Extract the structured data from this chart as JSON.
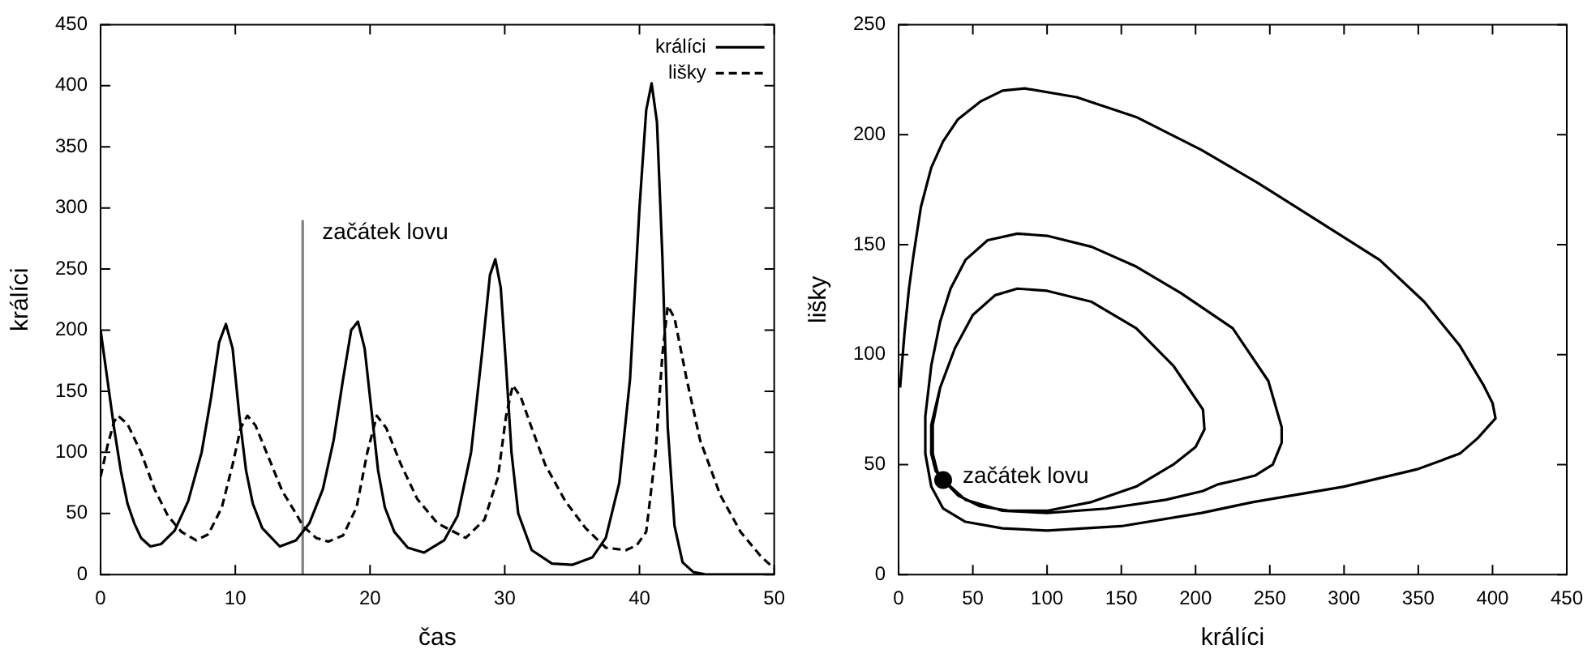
{
  "chart_data": [
    {
      "type": "line",
      "xlabel": "čas",
      "ylabel": "králíci",
      "xlim": [
        0,
        50
      ],
      "xticks": [
        0,
        10,
        20,
        30,
        40,
        50
      ],
      "ylim": [
        0,
        450
      ],
      "yticks": [
        0,
        50,
        100,
        150,
        200,
        250,
        300,
        350,
        400,
        450
      ],
      "grid": false,
      "legend": "top right",
      "marker": "none",
      "series": [
        {
          "name": "králíci",
          "color": "#000000",
          "line_style": "solid",
          "x": [
            0,
            0.5,
            1,
            1.5,
            2,
            2.5,
            3,
            3.7,
            4.5,
            5.5,
            6.5,
            7.5,
            8.2,
            8.8,
            9.3,
            9.8,
            10.3,
            10.8,
            11.3,
            12,
            13.3,
            14.5,
            15,
            15.5,
            16.5,
            17.3,
            18,
            18.6,
            19.1,
            19.6,
            20.1,
            20.6,
            21.1,
            21.8,
            22.8,
            24,
            25.5,
            26.5,
            27.5,
            28.3,
            28.9,
            29.3,
            29.7,
            30.1,
            30.5,
            31,
            32,
            33.5,
            35,
            36.5,
            37.5,
            38.5,
            39.3,
            40,
            40.5,
            40.9,
            41.3,
            41.7,
            42.1,
            42.6,
            43.2,
            44,
            45,
            50
          ],
          "values": [
            200,
            160,
            120,
            85,
            58,
            42,
            30,
            23,
            25,
            36,
            60,
            100,
            145,
            190,
            205,
            185,
            130,
            85,
            58,
            38,
            23,
            28,
            35,
            42,
            70,
            110,
            160,
            200,
            207,
            185,
            135,
            85,
            55,
            35,
            22,
            18,
            28,
            48,
            100,
            180,
            245,
            258,
            235,
            170,
            100,
            50,
            20,
            9,
            8,
            14,
            30,
            75,
            160,
            300,
            380,
            402,
            370,
            260,
            120,
            40,
            10,
            2,
            0,
            0
          ]
        },
        {
          "name": "lišky",
          "color": "#000000",
          "line_style": "dashed",
          "x": [
            0,
            0.5,
            1,
            1.3,
            2,
            3,
            4,
            5,
            6,
            7.1,
            8,
            9,
            9.8,
            10.4,
            10.9,
            11.5,
            12.5,
            13.5,
            14.5,
            15,
            16,
            16.9,
            18,
            19,
            19.8,
            20.5,
            21.2,
            22.3,
            23.5,
            25,
            27.1,
            28.5,
            29.5,
            30.1,
            30.6,
            31.2,
            32,
            33,
            34.5,
            36,
            37.5,
            39,
            39.8,
            40.5,
            41.2,
            41.7,
            42.1,
            42.6,
            43.5,
            44.5,
            46,
            47.5,
            49,
            50
          ],
          "values": [
            80,
            105,
            125,
            130,
            123,
            100,
            70,
            48,
            35,
            28,
            33,
            55,
            90,
            120,
            130,
            122,
            95,
            68,
            50,
            40,
            30,
            27,
            32,
            55,
            100,
            130,
            120,
            90,
            62,
            42,
            30,
            45,
            80,
            130,
            155,
            145,
            120,
            90,
            60,
            38,
            22,
            20,
            24,
            35,
            100,
            180,
            220,
            210,
            160,
            110,
            65,
            35,
            15,
            5
          ]
        },
        {
          "color": "#808080",
          "line_style": "solid",
          "x": [
            15,
            15
          ],
          "values": [
            0,
            290
          ]
        }
      ],
      "annotations": [
        {
          "text": "začátek lovu",
          "x": 15,
          "y": 290
        }
      ]
    },
    {
      "type": "line",
      "xlabel": "králíci",
      "ylabel": "lišky",
      "xlim": [
        0,
        450
      ],
      "xticks": [
        0,
        50,
        100,
        150,
        200,
        250,
        300,
        350,
        400,
        450
      ],
      "ylim": [
        0,
        250
      ],
      "yticks": [
        0,
        50,
        100,
        150,
        200,
        250
      ],
      "grid": false,
      "marker": "none",
      "series": [
        {
          "color": "#000000",
          "line_style": "solid",
          "x": [
            200,
            185,
            160,
            130,
            100,
            80,
            65,
            50,
            38,
            28,
            22,
            22,
            25,
            30,
            40,
            55,
            75,
            100,
            130,
            160,
            185,
            200,
            206,
            205,
            200,
            185,
            160,
            130,
            100,
            80,
            65,
            50,
            38,
            28,
            23,
            23,
            26,
            30,
            45,
            70,
            100,
            140,
            180,
            205,
            215,
            228,
            240,
            252,
            258,
            258,
            249,
            225,
            190,
            160,
            130,
            100,
            80,
            60,
            45,
            35,
            28,
            22,
            18,
            18,
            22,
            30,
            45,
            70,
            100,
            150,
            204,
            239,
            300,
            350,
            378,
            390,
            402,
            400,
            394,
            378,
            354,
            324,
            282,
            242,
            204,
            160,
            120,
            85,
            70,
            55,
            40,
            30,
            22,
            15,
            10,
            7,
            4,
            1
          ],
          "values": [
            80,
            95,
            112,
            124,
            129,
            130,
            127,
            118,
            103,
            85,
            68,
            55,
            47,
            43,
            36,
            31,
            29,
            29,
            33,
            40,
            50,
            58,
            66,
            75,
            80,
            95,
            112,
            124,
            129,
            130,
            127,
            118,
            103,
            85,
            68,
            55,
            47,
            43,
            34,
            29,
            28,
            30,
            34,
            38,
            41,
            43,
            45,
            50,
            60,
            67,
            88,
            112,
            128,
            140,
            149,
            154,
            155,
            152,
            143,
            130,
            115,
            95,
            72,
            55,
            40,
            30,
            24,
            21,
            20,
            22,
            28,
            33,
            40,
            48,
            55,
            62,
            71,
            78,
            86,
            104,
            124,
            143,
            161,
            178,
            193,
            208,
            217,
            221,
            220,
            215,
            207,
            197,
            185,
            167,
            145,
            130,
            110,
            85
          ]
        },
        {
          "type": "scatter",
          "color": "#000000",
          "marker": "circle",
          "x": [
            30
          ],
          "values": [
            43
          ]
        }
      ],
      "annotations": [
        {
          "text": "začátek lovu",
          "x": 30,
          "y": 43
        }
      ]
    }
  ]
}
